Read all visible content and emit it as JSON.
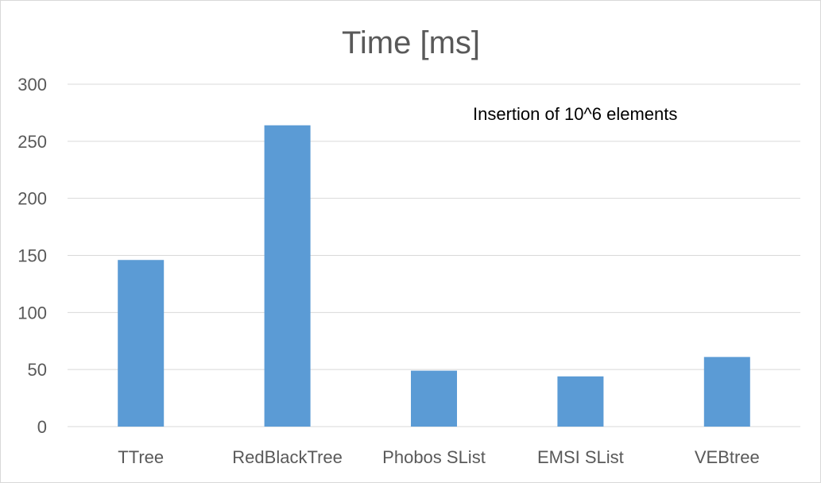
{
  "chart_data": {
    "type": "bar",
    "title": "Time [ms]",
    "xlabel": "",
    "ylabel": "",
    "categories": [
      "TTree",
      "RedBlackTree",
      "Phobos SList",
      "EMSI SList",
      "VEBtree"
    ],
    "values": [
      146,
      264,
      49,
      44,
      61
    ],
    "ylim": [
      0,
      300
    ],
    "yticks": [
      "0",
      "50",
      "100",
      "150",
      "200",
      "250",
      "300"
    ],
    "grid": true,
    "legend": "none",
    "annotation": "Insertion of 10^6 elements",
    "bar_color": "#5b9bd5"
  }
}
